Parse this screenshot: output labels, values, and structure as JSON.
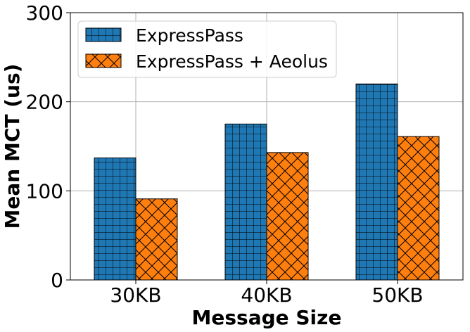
{
  "chart_data": {
    "type": "bar",
    "title": "",
    "xlabel": "Message Size",
    "ylabel": "Mean MCT (us)",
    "categories": [
      "30KB",
      "40KB",
      "50KB"
    ],
    "ylim": [
      0,
      300
    ],
    "yticks": [
      0,
      100,
      200,
      300
    ],
    "grid": true,
    "legend_position": "top-left",
    "series": [
      {
        "name": "ExpressPass",
        "values": [
          137,
          175,
          220
        ],
        "color": "#1f77b4",
        "hatch": "grid"
      },
      {
        "name": "ExpressPass + Aeolus",
        "values": [
          91,
          143,
          161
        ],
        "color": "#ff7f0e",
        "hatch": "cross"
      }
    ]
  }
}
